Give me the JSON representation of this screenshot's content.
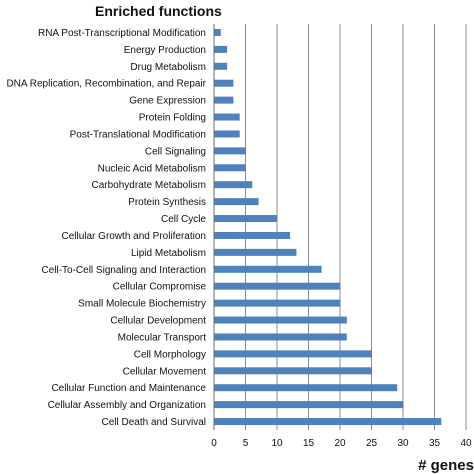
{
  "chart_data": {
    "type": "bar",
    "orientation": "horizontal",
    "title": "Enriched functions",
    "xlabel": "# genes",
    "ylabel": "",
    "xlim": [
      0,
      40
    ],
    "x_ticks": [
      0,
      5,
      10,
      15,
      20,
      25,
      30,
      35,
      40
    ],
    "grid": "vertical",
    "bar_color": "#4f81bd",
    "categories": [
      "RNA Post-Transcriptional Modification",
      "Energy Production",
      "Drug Metabolism",
      "DNA Replication, Recombination, and Repair",
      "Gene Expression",
      "Protein Folding",
      "Post-Translational Modification",
      "Cell Signaling",
      "Nucleic Acid Metabolism",
      "Carbohydrate Metabolism",
      "Protein Synthesis",
      "Cell Cycle",
      "Cellular Growth and Proliferation",
      "Lipid Metabolism",
      "Cell-To-Cell Signaling and Interaction",
      "Cellular Compromise",
      "Small Molecule Biochemistry",
      "Cellular Development",
      "Molecular Transport",
      "Cell Morphology",
      "Cellular Movement",
      "Cellular Function and Maintenance",
      "Cellular Assembly and Organization",
      "Cell Death and Survival"
    ],
    "values": [
      1,
      2,
      2,
      3,
      3,
      4,
      4,
      5,
      5,
      6,
      7,
      10,
      12,
      13,
      17,
      20,
      20,
      21,
      21,
      25,
      25,
      29,
      30,
      36
    ]
  }
}
